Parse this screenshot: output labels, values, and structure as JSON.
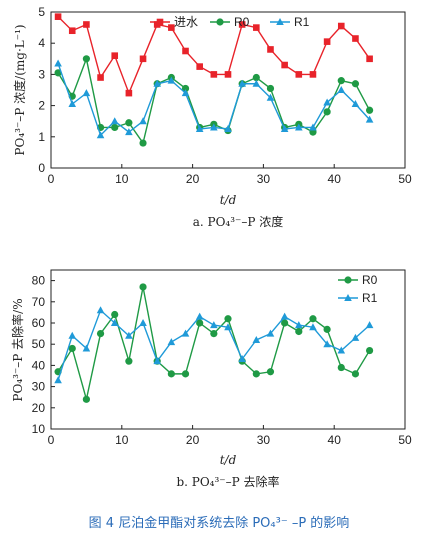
{
  "chart_data": [
    {
      "type": "line",
      "subtitle": "a. PO₄³⁻–P 浓度",
      "xlabel": "t/d",
      "ylabel": "PO₄³⁻–P 浓度/(mg·L⁻¹)",
      "xlim": [
        0,
        50
      ],
      "ylim": [
        0,
        5
      ],
      "xticks": [
        "0",
        "10",
        "20",
        "30",
        "40",
        "50"
      ],
      "yticks": [
        "0",
        "1",
        "2",
        "3",
        "4",
        "5"
      ],
      "legend_position": "top",
      "series": [
        {
          "name": "进水",
          "color": "#e8232a",
          "marker": "square",
          "x": [
            1,
            3,
            5,
            7,
            9,
            11,
            13,
            15,
            17,
            19,
            21,
            23,
            25,
            27,
            29,
            31,
            33,
            35,
            37,
            39,
            41,
            43,
            45
          ],
          "y": [
            4.85,
            4.4,
            4.6,
            2.9,
            3.6,
            2.4,
            3.5,
            4.6,
            4.5,
            3.75,
            3.25,
            3.0,
            3.0,
            4.6,
            4.5,
            3.8,
            3.3,
            3.0,
            3.0,
            4.05,
            4.55,
            4.15,
            3.5
          ]
        },
        {
          "name": "R0",
          "color": "#1f9a45",
          "marker": "circle",
          "x": [
            1,
            3,
            5,
            7,
            9,
            11,
            13,
            15,
            17,
            19,
            21,
            23,
            25,
            27,
            29,
            31,
            33,
            35,
            37,
            39,
            41,
            43,
            45
          ],
          "y": [
            3.05,
            2.3,
            3.5,
            1.3,
            1.3,
            1.45,
            0.8,
            2.7,
            2.9,
            2.55,
            1.3,
            1.4,
            1.2,
            2.7,
            2.9,
            2.55,
            1.3,
            1.4,
            1.15,
            1.8,
            2.8,
            2.7,
            1.85
          ]
        },
        {
          "name": "R1",
          "color": "#1f9ad8",
          "marker": "triangle",
          "x": [
            1,
            3,
            5,
            7,
            9,
            11,
            13,
            15,
            17,
            19,
            21,
            23,
            25,
            27,
            29,
            31,
            33,
            35,
            37,
            39,
            41,
            43,
            45
          ],
          "y": [
            3.35,
            2.05,
            2.4,
            1.05,
            1.5,
            1.15,
            1.5,
            2.7,
            2.8,
            2.4,
            1.25,
            1.3,
            1.25,
            2.7,
            2.7,
            2.25,
            1.25,
            1.3,
            1.3,
            2.1,
            2.5,
            2.05,
            1.55
          ]
        }
      ]
    },
    {
      "type": "line",
      "subtitle": "b. PO₄³⁻–P 去除率",
      "xlabel": "t/d",
      "ylabel": "PO₄³⁻–P 去除率/%",
      "xlim": [
        0,
        50
      ],
      "ylim": [
        10,
        85
      ],
      "xticks": [
        "0",
        "10",
        "20",
        "30",
        "40",
        "50"
      ],
      "yticks": [
        "10",
        "20",
        "30",
        "40",
        "50",
        "60",
        "70",
        "80"
      ],
      "legend_position": "top-right",
      "series": [
        {
          "name": "R0",
          "color": "#1f9a45",
          "marker": "circle",
          "x": [
            1,
            3,
            5,
            7,
            9,
            11,
            13,
            15,
            17,
            19,
            21,
            23,
            25,
            27,
            29,
            31,
            33,
            35,
            37,
            39,
            41,
            43,
            45
          ],
          "y": [
            37,
            48,
            24,
            55,
            64,
            42,
            77,
            42,
            36,
            36,
            60,
            55,
            62,
            42,
            36,
            37,
            60,
            56,
            62,
            57,
            39,
            36,
            47
          ]
        },
        {
          "name": "R1",
          "color": "#1f9ad8",
          "marker": "triangle",
          "x": [
            1,
            3,
            5,
            7,
            9,
            11,
            13,
            15,
            17,
            19,
            21,
            23,
            25,
            27,
            29,
            31,
            33,
            35,
            37,
            39,
            41,
            43,
            45
          ],
          "y": [
            33,
            54,
            48,
            66,
            60,
            54,
            60,
            42,
            51,
            55,
            63,
            59,
            58,
            43,
            52,
            55,
            63,
            59,
            58,
            50,
            47,
            53,
            59
          ]
        }
      ]
    }
  ],
  "caption": "图 4   尼泊金甲酯对系统去除 PO₄³⁻ –P 的影响"
}
